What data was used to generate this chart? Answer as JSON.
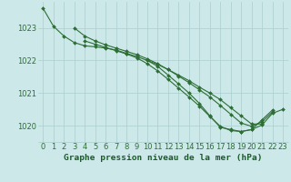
{
  "title": "Graphe pression niveau de la mer (hPa)",
  "xlabel_hours": [
    0,
    1,
    2,
    3,
    4,
    5,
    6,
    7,
    8,
    9,
    10,
    11,
    12,
    13,
    14,
    15,
    16,
    17,
    18,
    19,
    20,
    21,
    22,
    23
  ],
  "line1": [
    1023.6,
    1023.05,
    1022.75,
    1022.55,
    1022.45,
    1022.42,
    1022.38,
    1022.32,
    1022.22,
    1022.12,
    1022.0,
    1021.88,
    1021.72,
    1021.55,
    1021.38,
    1021.18,
    1021.0,
    1020.8,
    1020.55,
    1020.3,
    1020.05,
    1020.05,
    null,
    null
  ],
  "line2": [
    null,
    null,
    null,
    1023.0,
    1022.75,
    1022.6,
    1022.48,
    1022.38,
    1022.28,
    1022.18,
    1022.05,
    1021.9,
    1021.72,
    1021.52,
    1021.32,
    1021.1,
    1020.88,
    1020.62,
    1020.35,
    1020.08,
    1019.98,
    1020.12,
    1020.42,
    null
  ],
  "line3": [
    null,
    null,
    null,
    null,
    1022.6,
    1022.5,
    1022.4,
    1022.3,
    1022.2,
    1022.08,
    1021.9,
    1021.68,
    1021.42,
    1021.15,
    1020.88,
    1020.6,
    1020.28,
    1019.98,
    1019.85,
    1019.82,
    1019.88,
    1020.18,
    1020.48,
    null
  ],
  "line4": [
    null,
    null,
    null,
    null,
    null,
    null,
    null,
    null,
    null,
    null,
    1022.0,
    1021.82,
    1021.55,
    1021.28,
    1021.0,
    1020.68,
    1020.3,
    1019.95,
    1019.88,
    1019.82,
    1019.88,
    1020.02,
    1020.38,
    1020.5
  ],
  "ylim": [
    1019.5,
    1023.8
  ],
  "yticks": [
    1020,
    1021,
    1022,
    1023
  ],
  "line_color": "#2d6e35",
  "bg_color": "#cce8e8",
  "grid_color": "#aacece",
  "title_color": "#1a5c28",
  "title_fontsize": 6.8,
  "tick_fontsize": 6.0,
  "marker": "D",
  "marker_size": 2.0,
  "linewidth": 0.8
}
